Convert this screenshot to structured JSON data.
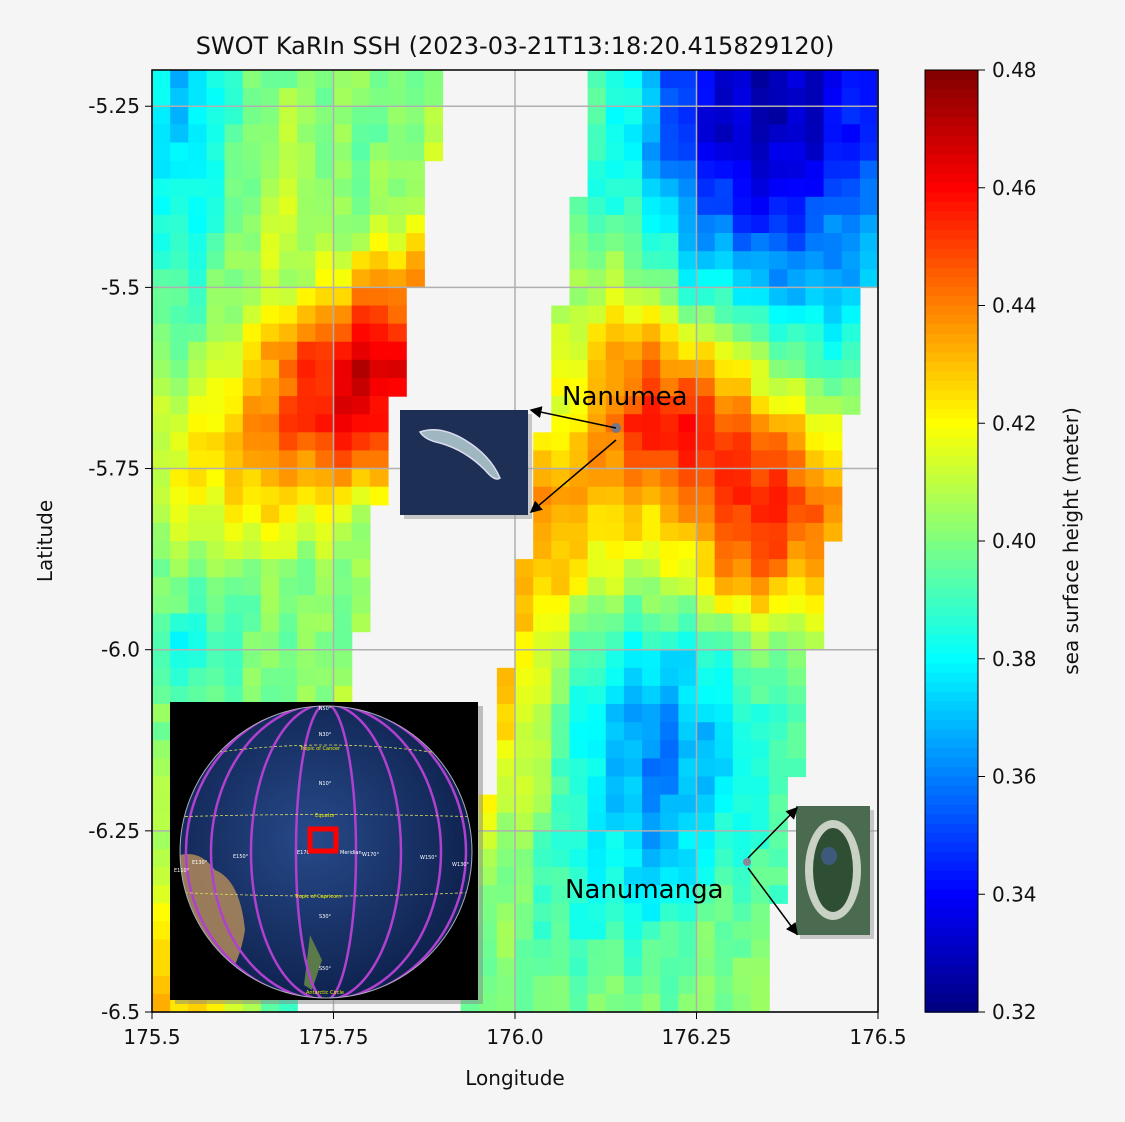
{
  "chart_data": {
    "type": "heatmap",
    "title": "SWOT KaRIn SSH (2023-03-21T13:18:20.415829120)",
    "xlabel": "Longitude",
    "ylabel": "Latitude",
    "xlim": [
      175.5,
      176.5
    ],
    "ylim": [
      -6.5,
      -5.2
    ],
    "xticks": [
      "175.5",
      "175.75",
      "176.0",
      "176.25",
      "176.5"
    ],
    "xtick_values": [
      175.5,
      175.75,
      176.0,
      176.25,
      176.5
    ],
    "yticks": [
      "-5.25",
      "-5.5",
      "-5.75",
      "-6.0",
      "-6.25",
      "-6.5"
    ],
    "ytick_values": [
      -5.25,
      -5.5,
      -5.75,
      -6.0,
      -6.25,
      -6.5
    ],
    "grid": true,
    "colormap": "jet",
    "colorbar": {
      "label": "sea surface height (meter)",
      "range": [
        0.32,
        0.48
      ],
      "ticks": [
        "0.32",
        "0.34",
        "0.36",
        "0.38",
        "0.40",
        "0.42",
        "0.44",
        "0.46",
        "0.48"
      ],
      "tick_values": [
        0.32,
        0.34,
        0.36,
        0.38,
        0.4,
        0.42,
        0.44,
        0.46,
        0.48
      ]
    },
    "grid_lon": [
      175.5,
      175.55,
      175.6,
      175.65,
      175.7,
      175.75,
      175.8,
      175.85,
      175.9,
      175.95,
      176.0,
      176.05,
      176.1,
      176.15,
      176.2,
      176.25,
      176.3,
      176.35,
      176.4,
      176.45,
      176.5
    ],
    "grid_lat": [
      -5.2,
      -5.3,
      -5.4,
      -5.5,
      -5.6,
      -5.7,
      -5.8,
      -5.9,
      -6.0,
      -6.1,
      -6.2,
      -6.3,
      -6.4,
      -6.5
    ],
    "ssh": [
      [
        0.38,
        0.37,
        0.39,
        0.4,
        0.4,
        0.4,
        0.4,
        0.4,
        0.4,
        0.4,
        0.4,
        0.4,
        0.39,
        0.39,
        0.36,
        0.34,
        0.33,
        0.33,
        0.33,
        0.34,
        0.35
      ],
      [
        0.38,
        0.37,
        0.39,
        0.4,
        0.41,
        0.4,
        0.4,
        0.4,
        0.41,
        0.4,
        0.4,
        0.4,
        0.39,
        0.38,
        0.36,
        0.34,
        0.33,
        0.33,
        0.33,
        0.34,
        0.35
      ],
      [
        0.39,
        0.38,
        0.39,
        0.41,
        0.41,
        0.4,
        0.4,
        0.41,
        0.42,
        0.4,
        0.4,
        0.39,
        0.39,
        0.39,
        0.38,
        0.36,
        0.35,
        0.34,
        0.35,
        0.36,
        0.36
      ],
      [
        0.39,
        0.39,
        0.4,
        0.41,
        0.41,
        0.42,
        0.44,
        0.44,
        0.44,
        0.41,
        0.4,
        0.4,
        0.41,
        0.41,
        0.4,
        0.38,
        0.38,
        0.37,
        0.37,
        0.37,
        0.37
      ],
      [
        0.4,
        0.4,
        0.41,
        0.43,
        0.45,
        0.46,
        0.47,
        0.46,
        0.46,
        0.41,
        0.4,
        0.41,
        0.42,
        0.44,
        0.44,
        0.43,
        0.42,
        0.4,
        0.39,
        0.39,
        0.39
      ],
      [
        0.41,
        0.42,
        0.43,
        0.44,
        0.45,
        0.46,
        0.46,
        0.45,
        0.45,
        0.42,
        0.41,
        0.42,
        0.43,
        0.45,
        0.46,
        0.46,
        0.45,
        0.44,
        0.43,
        0.41,
        0.41
      ],
      [
        0.41,
        0.42,
        0.42,
        0.43,
        0.42,
        0.42,
        0.41,
        0.41,
        0.42,
        0.42,
        0.43,
        0.44,
        0.43,
        0.43,
        0.43,
        0.44,
        0.45,
        0.46,
        0.45,
        0.43,
        0.43
      ],
      [
        0.4,
        0.4,
        0.4,
        0.4,
        0.4,
        0.4,
        0.4,
        0.41,
        0.43,
        0.43,
        0.43,
        0.43,
        0.42,
        0.41,
        0.41,
        0.42,
        0.44,
        0.44,
        0.43,
        0.42,
        0.42
      ],
      [
        0.39,
        0.38,
        0.39,
        0.4,
        0.4,
        0.4,
        0.41,
        0.43,
        0.44,
        0.44,
        0.43,
        0.41,
        0.39,
        0.38,
        0.38,
        0.38,
        0.39,
        0.4,
        0.4,
        0.4,
        0.4
      ],
      [
        0.4,
        0.4,
        0.4,
        0.4,
        0.4,
        0.41,
        0.43,
        0.44,
        0.44,
        0.43,
        0.42,
        0.4,
        0.38,
        0.37,
        0.36,
        0.37,
        0.38,
        0.39,
        0.39,
        0.39,
        0.39
      ],
      [
        0.41,
        0.41,
        0.4,
        0.4,
        0.4,
        0.41,
        0.42,
        0.42,
        0.42,
        0.42,
        0.41,
        0.4,
        0.38,
        0.37,
        0.36,
        0.37,
        0.38,
        0.39,
        0.39,
        0.39,
        0.39
      ],
      [
        0.41,
        0.41,
        0.4,
        0.4,
        0.4,
        0.41,
        0.41,
        0.41,
        0.41,
        0.41,
        0.4,
        0.39,
        0.38,
        0.38,
        0.37,
        0.38,
        0.39,
        0.39,
        0.39,
        0.39,
        0.39
      ],
      [
        0.42,
        0.42,
        0.41,
        0.4,
        0.39,
        0.4,
        0.4,
        0.4,
        0.4,
        0.4,
        0.4,
        0.39,
        0.39,
        0.39,
        0.39,
        0.4,
        0.4,
        0.4,
        0.4,
        0.4,
        0.4
      ],
      [
        0.43,
        0.43,
        0.42,
        0.4,
        0.39,
        0.4,
        0.4,
        0.4,
        0.4,
        0.4,
        0.4,
        0.4,
        0.4,
        0.4,
        0.4,
        0.4,
        0.4,
        0.4,
        0.4,
        0.4,
        0.4
      ]
    ],
    "swath_gap": {
      "left_swath_east_edge_lon": [
        175.908,
        175.705
      ],
      "right_swath_west_edge_lon": [
        176.113,
        175.917
      ],
      "right_swath_east_edge_lon": [
        176.532,
        176.34
      ]
    },
    "annotations": [
      "Nanumea",
      "Nanumanga"
    ]
  },
  "globe_inset": {
    "labels": [
      "N50°",
      "N30°",
      "Tropic of Cancer",
      "N10°",
      "Equator",
      "E170°",
      "Meridian",
      "W170°",
      "W150°",
      "W130°",
      "E150°",
      "E130°",
      "E110°",
      "Tropic of Capricorn",
      "S30°",
      "S50°",
      "Antarctic Circle"
    ]
  },
  "colors": {
    "background": "#f6f5f5",
    "grid": "#b0b0b0",
    "highlight_box": "#ff0000",
    "orbit": "#b040d0"
  }
}
